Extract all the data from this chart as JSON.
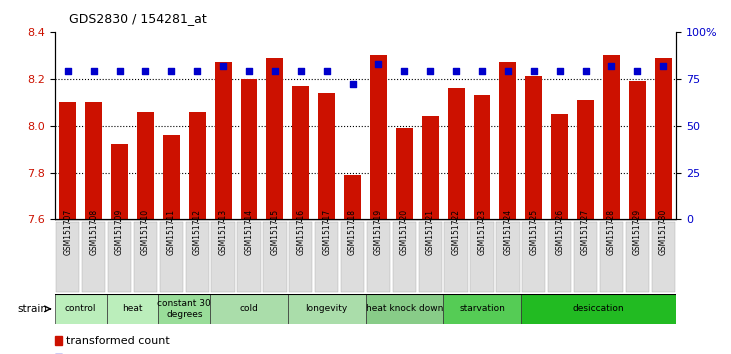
{
  "title": "GDS2830 / 154281_at",
  "samples": [
    "GSM151707",
    "GSM151708",
    "GSM151709",
    "GSM151710",
    "GSM151711",
    "GSM151712",
    "GSM151713",
    "GSM151714",
    "GSM151715",
    "GSM151716",
    "GSM151717",
    "GSM151718",
    "GSM151719",
    "GSM151720",
    "GSM151721",
    "GSM151722",
    "GSM151723",
    "GSM151724",
    "GSM151725",
    "GSM151726",
    "GSM151727",
    "GSM151728",
    "GSM151729",
    "GSM151730"
  ],
  "bar_values": [
    8.1,
    8.1,
    7.92,
    8.06,
    7.96,
    8.06,
    8.27,
    8.2,
    8.29,
    8.17,
    8.14,
    7.79,
    8.3,
    7.99,
    8.04,
    8.16,
    8.13,
    8.27,
    8.21,
    8.05,
    8.11,
    8.3,
    8.19,
    8.29
  ],
  "percentile_values": [
    79,
    79,
    79,
    79,
    79,
    79,
    82,
    79,
    79,
    79,
    79,
    72,
    83,
    79,
    79,
    79,
    79,
    79,
    79,
    79,
    79,
    82,
    79,
    82
  ],
  "groups": [
    {
      "label": "control",
      "start": 0,
      "end": 2,
      "color": "#bbeebb"
    },
    {
      "label": "heat",
      "start": 2,
      "end": 4,
      "color": "#bbeebb"
    },
    {
      "label": "constant 30\ndegrees",
      "start": 4,
      "end": 6,
      "color": "#99dd99"
    },
    {
      "label": "cold",
      "start": 6,
      "end": 9,
      "color": "#aaddaa"
    },
    {
      "label": "longevity",
      "start": 9,
      "end": 12,
      "color": "#aaddaa"
    },
    {
      "label": "heat knock down",
      "start": 12,
      "end": 15,
      "color": "#88cc88"
    },
    {
      "label": "starvation",
      "start": 15,
      "end": 18,
      "color": "#55cc55"
    },
    {
      "label": "desiccation",
      "start": 18,
      "end": 24,
      "color": "#22bb22"
    }
  ],
  "ylim_left": [
    7.6,
    8.4
  ],
  "ylim_right": [
    0,
    100
  ],
  "yticks_left": [
    7.6,
    7.8,
    8.0,
    8.2,
    8.4
  ],
  "yticks_right": [
    0,
    25,
    50,
    75,
    100
  ],
  "bar_color": "#cc1100",
  "dot_color": "#0000cc",
  "bg_color": "#ffffff",
  "grid_color": "#000000",
  "tick_label_color_left": "#cc1100",
  "tick_label_color_right": "#0000cc",
  "gridlines": [
    7.8,
    8.0,
    8.2
  ]
}
